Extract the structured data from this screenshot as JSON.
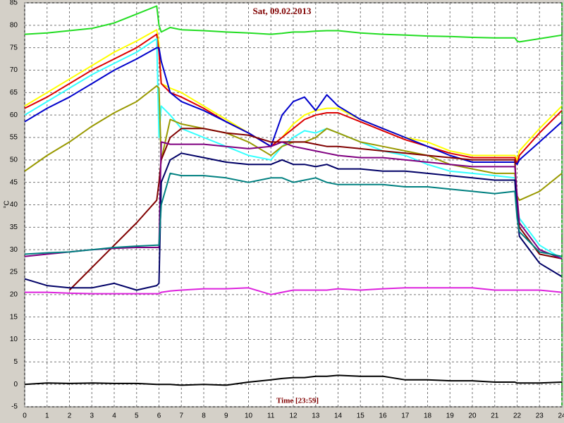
{
  "chart_data": {
    "type": "line",
    "title": "Sat, 09.02.2013",
    "x_label": "Time [23:59]",
    "y_label": "°C",
    "xlim": [
      0,
      24
    ],
    "ylim": [
      -5,
      85
    ],
    "xticks": [
      0,
      1,
      2,
      3,
      4,
      5,
      6,
      7,
      8,
      9,
      10,
      11,
      12,
      13,
      14,
      15,
      16,
      17,
      18,
      19,
      20,
      21,
      22,
      23,
      24
    ],
    "yticks": [
      -5,
      0,
      5,
      10,
      15,
      20,
      25,
      30,
      35,
      40,
      45,
      50,
      55,
      60,
      65,
      70,
      75,
      80,
      85
    ],
    "grid": true,
    "x": [
      0,
      1,
      2,
      3,
      4,
      5,
      5.9,
      6,
      6.1,
      6.5,
      7,
      8,
      9,
      10,
      11,
      11.5,
      12,
      12.5,
      13,
      13.5,
      14,
      15,
      16,
      17,
      18,
      19,
      20,
      21,
      21.9,
      22,
      22.1,
      23,
      24
    ],
    "series": [
      {
        "color": "#22dd22",
        "values": [
          78,
          78.3,
          78.8,
          79.3,
          80.5,
          82.5,
          84.3,
          80,
          78.5,
          79.5,
          79,
          78.8,
          78.5,
          78.3,
          78,
          78.2,
          78.5,
          78.5,
          78.7,
          78.8,
          78.8,
          78.3,
          78,
          77.8,
          77.6,
          77.5,
          77.3,
          77.2,
          77.2,
          76.5,
          76.3,
          77,
          77.8
        ]
      },
      {
        "color": "#ffff00",
        "values": [
          62,
          65,
          68,
          71,
          74,
          76.5,
          79,
          76,
          67,
          66,
          65,
          62,
          59,
          56,
          53,
          55,
          58,
          60,
          61,
          61.5,
          61.5,
          59,
          57,
          55,
          54,
          52,
          51,
          51,
          51,
          50,
          52,
          57,
          62
        ]
      },
      {
        "color": "#dd0000",
        "values": [
          61.5,
          64,
          67,
          70,
          72.5,
          75,
          78,
          74,
          67,
          65,
          64,
          61.5,
          58.5,
          56,
          53,
          55,
          57,
          59,
          60,
          60.5,
          60.5,
          58.5,
          56.5,
          54.5,
          53,
          51.5,
          50.5,
          50.5,
          50.5,
          49,
          51,
          56,
          61
        ]
      },
      {
        "color": "#33ffff",
        "values": [
          60,
          63,
          66,
          69,
          71.5,
          74,
          77,
          55,
          62,
          60,
          57,
          55,
          53,
          51,
          50,
          53,
          55,
          56.5,
          56,
          57,
          56,
          54,
          52,
          51,
          49,
          47.5,
          47,
          46.5,
          46,
          40,
          37,
          31,
          28
        ]
      },
      {
        "color": "#0000cc",
        "values": [
          58.5,
          61.5,
          64,
          67,
          70,
          72.5,
          75,
          75,
          72,
          65,
          63,
          61,
          58.5,
          56,
          53,
          60,
          63,
          64,
          61,
          64.5,
          62,
          59,
          57,
          55,
          53,
          51,
          49.5,
          49.5,
          49.5,
          49,
          50,
          54,
          58.5
        ]
      },
      {
        "color": "#999900",
        "values": [
          47.5,
          51,
          54,
          57.5,
          60.5,
          63,
          66.5,
          66,
          50,
          59,
          58,
          57,
          56,
          54,
          51,
          53,
          54,
          54,
          55,
          57,
          56,
          54,
          53,
          52,
          51,
          49,
          48,
          47,
          47,
          42,
          41,
          43,
          47
        ]
      },
      {
        "color": "#800000",
        "values": [
          null,
          null,
          21,
          26,
          31,
          36,
          41,
          45,
          50,
          55,
          57,
          57,
          56,
          55.5,
          54,
          54,
          54,
          54,
          53.5,
          53,
          53,
          52.5,
          52,
          51.5,
          51,
          50.5,
          50,
          50,
          50,
          40,
          35,
          29,
          28
        ]
      },
      {
        "color": "#800080",
        "values": [
          28.5,
          29,
          29.5,
          30,
          30.3,
          30.5,
          30.5,
          30.5,
          54,
          53.5,
          53.5,
          53.5,
          53,
          52.5,
          53,
          54,
          53,
          52.5,
          52,
          51.5,
          51,
          50.5,
          50.5,
          50,
          49.5,
          49,
          48.5,
          48.5,
          48.5,
          42,
          36,
          30,
          28
        ]
      },
      {
        "color": "#000066",
        "values": [
          23.5,
          22,
          21.5,
          21.5,
          22.5,
          21,
          22,
          22.5,
          45,
          50,
          51.5,
          50.5,
          49.5,
          49,
          49,
          50,
          49,
          49,
          48.5,
          49,
          48,
          48,
          47.5,
          47.5,
          47,
          46.5,
          46,
          45.5,
          45.5,
          38,
          33,
          27,
          24
        ]
      },
      {
        "color": "#008080",
        "values": [
          29,
          29.3,
          29.5,
          30,
          30.5,
          30.8,
          31,
          31,
          40,
          47,
          46.5,
          46.5,
          46,
          45,
          46,
          46,
          45,
          45.5,
          46,
          45,
          44.5,
          44.5,
          44.5,
          44,
          44,
          43.5,
          43,
          42.5,
          43,
          37,
          34,
          29.5,
          28.5
        ]
      },
      {
        "color": "#dd22dd",
        "values": [
          20.5,
          20.5,
          20.3,
          20.2,
          20.2,
          20.2,
          20.2,
          20.2,
          20.5,
          20.8,
          21,
          21.3,
          21.3,
          21.5,
          20,
          20.5,
          21,
          21,
          21,
          21,
          21.3,
          21,
          21.3,
          21.5,
          21.5,
          21.5,
          21.5,
          21,
          21,
          21,
          21,
          21,
          20.5
        ]
      },
      {
        "color": "#000000",
        "values": [
          0,
          0.3,
          0.2,
          0.3,
          0.2,
          0.2,
          0,
          0,
          0,
          0,
          -0.2,
          0,
          -0.2,
          0.5,
          1,
          1.3,
          1.5,
          1.5,
          1.8,
          1.8,
          2,
          1.8,
          1.8,
          1,
          1,
          0.8,
          0.8,
          0.5,
          0.5,
          0.3,
          0.3,
          0.3,
          0.5
        ]
      }
    ]
  }
}
